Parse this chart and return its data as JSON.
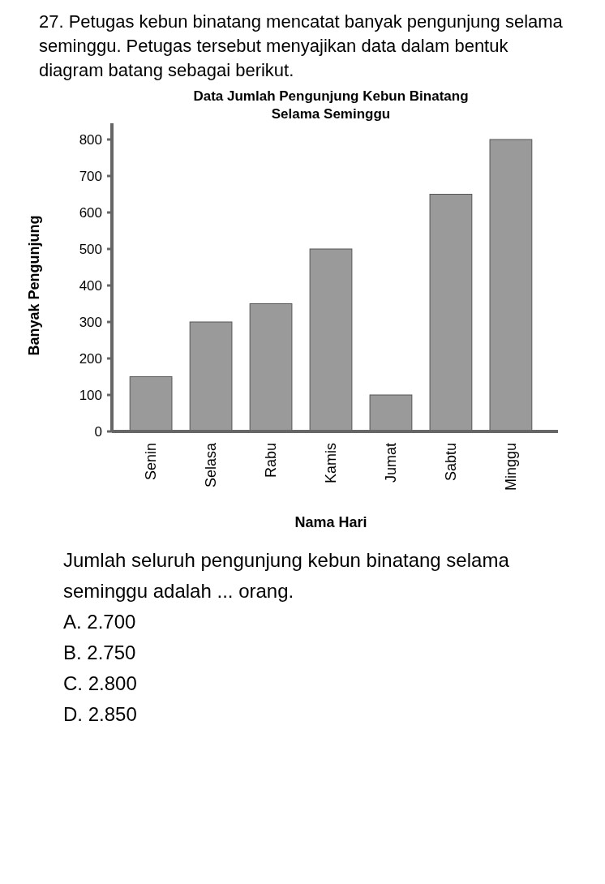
{
  "chart_data": {
    "type": "bar",
    "title": "Data Jumlah Pengunjung Kebun Binatang Selama Seminggu",
    "xlabel": "Nama Hari",
    "ylabel": "Banyak Pengunjung",
    "categories": [
      "Senin",
      "Selasa",
      "Rabu",
      "Kamis",
      "Jumat",
      "Sabtu",
      "Minggu"
    ],
    "values": [
      150,
      300,
      350,
      500,
      100,
      650,
      800
    ],
    "color": "#9a9a9a",
    "ylim": [
      0,
      800
    ],
    "yticks": [
      0,
      100,
      200,
      300,
      400,
      500,
      600,
      700,
      800
    ],
    "grid": false,
    "annotations": [
      "27. Petugas kebun binatang mencatat banyak pengunjung selama seminggu. Petugas tersebut menyajikan data dalam bentuk diagram batang sebagai berikut.",
      "Jumlah seluruh pengunjung kebun binatang selama seminggu adalah ... orang.",
      "A. 2.700",
      "B. 2.750",
      "C. 2.800",
      "D. 2.850"
    ]
  }
}
